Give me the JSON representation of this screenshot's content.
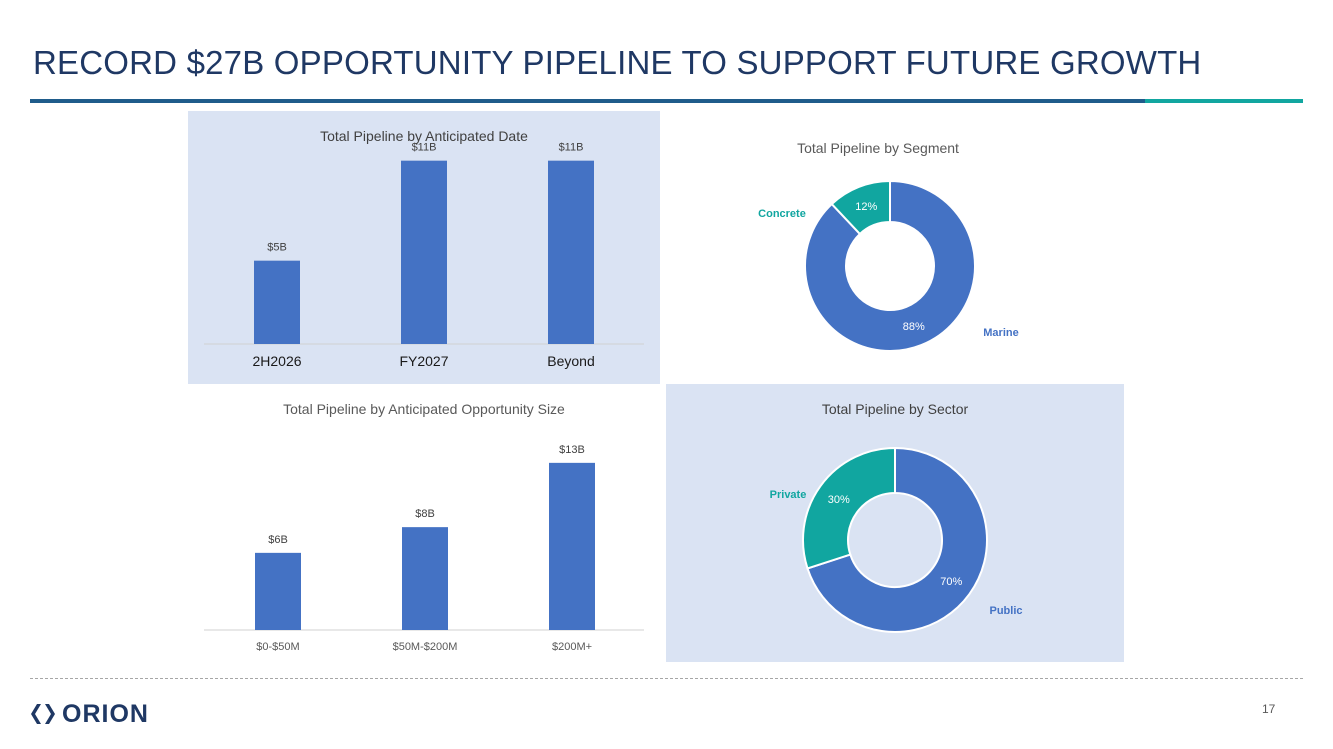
{
  "slide": {
    "title": "RECORD $27B OPPORTUNITY PIPELINE TO SUPPORT FUTURE GROWTH",
    "page_number": "17",
    "logo_text": "ORION"
  },
  "colors": {
    "title": "#1f3864",
    "rule": "#1f5c8b",
    "rule_accent": "#11a6a0",
    "bar": "#4472c4",
    "teal": "#11a6a0",
    "panel_bg": "#dae3f3"
  },
  "chart_data": [
    {
      "id": "date",
      "type": "bar",
      "title": "Total Pipeline by Anticipated Date",
      "categories": [
        "2H2026",
        "FY2027",
        "Beyond"
      ],
      "values": [
        5,
        11,
        11
      ],
      "data_labels": [
        "$5B",
        "$11B",
        "$11B"
      ],
      "xlabel": "",
      "ylabel": "",
      "ylim": [
        0,
        12
      ],
      "grid": false,
      "background": "#dae3f3"
    },
    {
      "id": "segment",
      "type": "pie",
      "title": "Total Pipeline by Segment",
      "donut": true,
      "labels": [
        "Marine",
        "Concrete"
      ],
      "values": [
        88,
        12
      ],
      "data_labels": [
        "88%",
        "12%"
      ],
      "colors": [
        "#4472c4",
        "#11a6a0"
      ]
    },
    {
      "id": "size",
      "type": "bar",
      "title": "Total Pipeline by Anticipated Opportunity Size",
      "categories": [
        "$0-$50M",
        "$50M-$200M",
        "$200M+"
      ],
      "values": [
        6,
        8,
        13
      ],
      "data_labels": [
        "$6B",
        "$8B",
        "$13B"
      ],
      "xlabel": "",
      "ylabel": "",
      "ylim": [
        0,
        14
      ],
      "grid": false
    },
    {
      "id": "sector",
      "type": "pie",
      "title": "Total Pipeline by Sector",
      "donut": true,
      "labels": [
        "Public",
        "Private"
      ],
      "values": [
        70,
        30
      ],
      "data_labels": [
        "70%",
        "30%"
      ],
      "colors": [
        "#4472c4",
        "#11a6a0"
      ],
      "background": "#dae3f3"
    }
  ]
}
